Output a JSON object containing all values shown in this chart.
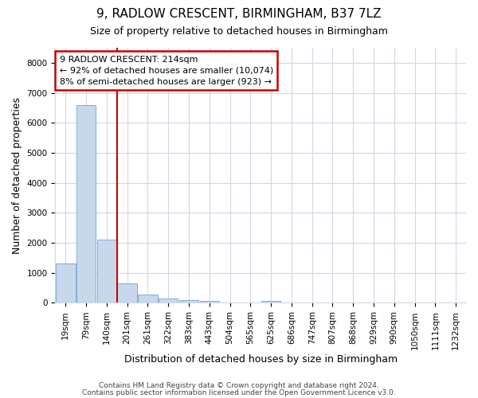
{
  "title_line1": "9, RADLOW CRESCENT, BIRMINGHAM, B37 7LZ",
  "title_line2": "Size of property relative to detached houses in Birmingham",
  "xlabel": "Distribution of detached houses by size in Birmingham",
  "ylabel": "Number of detached properties",
  "categories": [
    "19sqm",
    "79sqm",
    "140sqm",
    "201sqm",
    "261sqm",
    "322sqm",
    "383sqm",
    "443sqm",
    "504sqm",
    "565sqm",
    "625sqm",
    "686sqm",
    "747sqm",
    "807sqm",
    "868sqm",
    "929sqm",
    "990sqm",
    "1050sqm",
    "1111sqm",
    "1232sqm"
  ],
  "values": [
    1300,
    6600,
    2100,
    650,
    290,
    150,
    100,
    70,
    0,
    0,
    70,
    0,
    0,
    0,
    0,
    0,
    0,
    0,
    0,
    0
  ],
  "bar_color": "#c8d8ec",
  "bar_edge_color": "#7fadd4",
  "red_line_x": 2.5,
  "red_line_color": "#cc0000",
  "annotation_text": "9 RADLOW CRESCENT: 214sqm\n← 92% of detached houses are smaller (10,074)\n8% of semi-detached houses are larger (923) →",
  "annotation_box_edgecolor": "#cc0000",
  "ylim": [
    0,
    8500
  ],
  "yticks": [
    0,
    1000,
    2000,
    3000,
    4000,
    5000,
    6000,
    7000,
    8000
  ],
  "footer_line1": "Contains HM Land Registry data © Crown copyright and database right 2024.",
  "footer_line2": "Contains public sector information licensed under the Open Government Licence v3.0.",
  "background_color": "#ffffff",
  "grid_color": "#d0d8e8",
  "title_fontsize": 11,
  "subtitle_fontsize": 9,
  "axis_label_fontsize": 9,
  "tick_fontsize": 7.5,
  "footer_fontsize": 6.5
}
